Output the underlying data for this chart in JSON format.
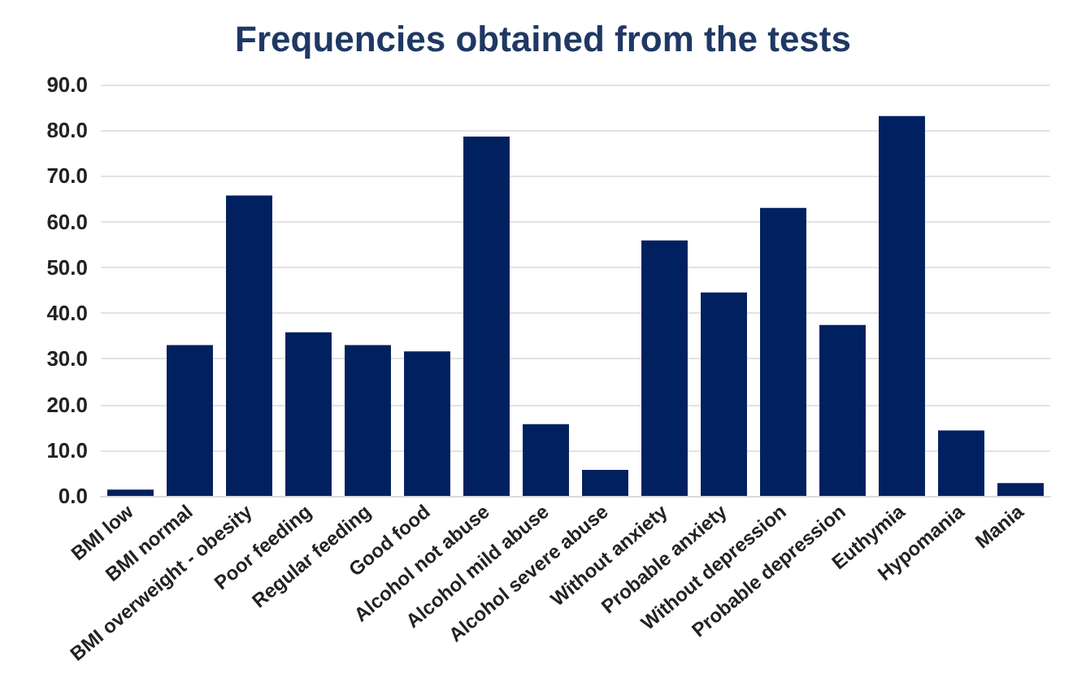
{
  "chart_data": {
    "type": "bar",
    "title": "Frequencies obtained from the tests",
    "categories": [
      "BMI low",
      "BMI normal",
      "BMI overweight - obesity",
      "Poor feeding",
      "Regular feeding",
      "Good food",
      "Alcohol not abuse",
      "Alcohol mild abuse",
      "Alcohol severe abuse",
      "Without anxiety",
      "Probable anxiety",
      "Without depression",
      "Probable depression",
      "Euthymia",
      "Hypomania",
      "Mania"
    ],
    "values": [
      1.4,
      33.0,
      65.7,
      35.8,
      33.0,
      31.6,
      78.6,
      15.7,
      5.7,
      55.9,
      44.5,
      63.0,
      37.4,
      83.1,
      14.3,
      2.8
    ],
    "color": "#002060",
    "ylim": [
      0,
      90
    ],
    "yticks": [
      {
        "value": 0,
        "label": "0.0"
      },
      {
        "value": 10,
        "label": "10.0"
      },
      {
        "value": 20,
        "label": "20.0"
      },
      {
        "value": 30,
        "label": "30.0"
      },
      {
        "value": 40,
        "label": "40.0"
      },
      {
        "value": 50,
        "label": "50.0"
      },
      {
        "value": 60,
        "label": "60.0"
      },
      {
        "value": 70,
        "label": "70.0"
      },
      {
        "value": 80,
        "label": "80.0"
      },
      {
        "value": 90,
        "label": "90.0"
      }
    ],
    "grid": "y"
  }
}
